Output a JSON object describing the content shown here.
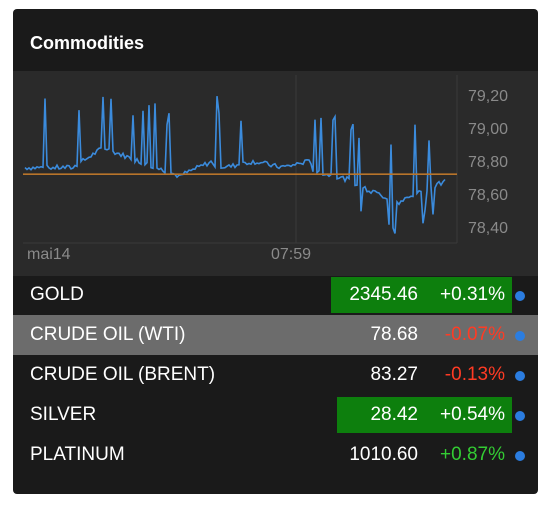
{
  "widget": {
    "title": "Commodities"
  },
  "chart": {
    "y_ticks": [
      "79,20",
      "79,00",
      "78,80",
      "78,60",
      "78,40"
    ],
    "x_ticks": [
      "mai14",
      "07:59"
    ],
    "reference_value": "78,72",
    "colors": {
      "line": "#3b8bdc",
      "reference": "#b8742a",
      "background": "#2a2a2a"
    }
  },
  "rows": [
    {
      "name": "GOLD",
      "price": "2345.46",
      "change": "+0.31%",
      "direction": "up",
      "highlighted": true
    },
    {
      "name": "CRUDE OIL (WTI)",
      "price": "78.68",
      "change": "-0.07%",
      "direction": "down",
      "highlighted": false,
      "selected": true
    },
    {
      "name": "CRUDE OIL (BRENT)",
      "price": "83.27",
      "change": "-0.13%",
      "direction": "down",
      "highlighted": false
    },
    {
      "name": "SILVER",
      "price": "28.42",
      "change": "+0.54%",
      "direction": "up",
      "highlighted": true
    },
    {
      "name": "PLATINUM",
      "price": "1010.60",
      "change": "+0.87%",
      "direction": "up",
      "highlighted": false
    }
  ],
  "colors": {
    "positive": "#33cc33",
    "negative": "#ff3b24",
    "highlight": "#0d7f0d",
    "dot": "#2b7de0"
  }
}
